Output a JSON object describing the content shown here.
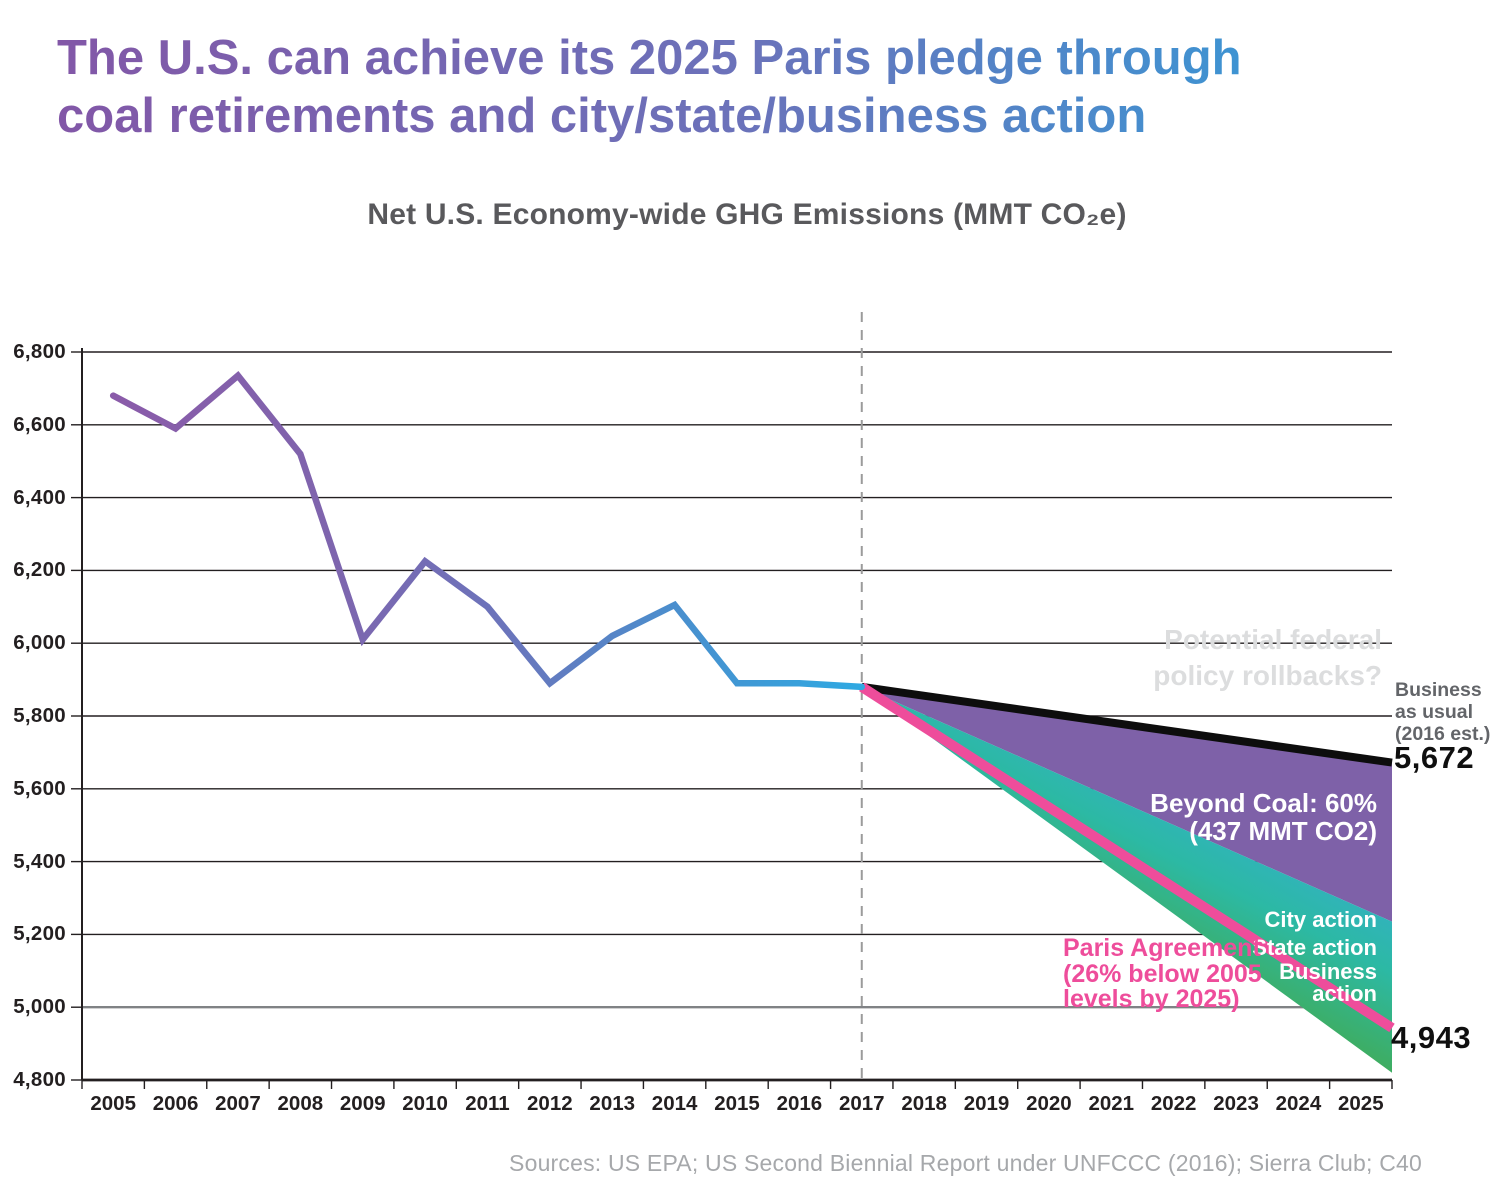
{
  "header": {
    "title_line1": "The U.S. can achieve its 2025 Paris pledge through",
    "title_line2": "coal retirements and city/state/business action",
    "subtitle": "Net U.S. Economy-wide GHG Emissions (MMT CO₂e)"
  },
  "annotations": {
    "rollback_line1": "Potential federal",
    "rollback_line2": "policy rollbacks?",
    "bau_line1": "Business",
    "bau_line2": "as usual",
    "bau_line3": "(2016 est.)",
    "bau_value": "5,672",
    "beyond_coal_line1": "Beyond Coal: 60%",
    "beyond_coal_line2": "(437 MMT CO2)",
    "city_action": "City action",
    "state_action": "State action",
    "business_action_line1": "Business",
    "business_action_line2": "action",
    "paris_line1": "Paris Agreement",
    "paris_line2": "(26% below 2005",
    "paris_line3": "levels by 2025)",
    "paris_value": "4,943"
  },
  "footer": {
    "source": "Sources: US EPA; US Second Biennial Report under UNFCCC (2016); Sierra Club; C40"
  },
  "colors": {
    "title_gradient_start": "#8257a7",
    "title_gradient_end": "#29a3dd",
    "historical_start": "#8a5ba9",
    "historical_end": "#2fa9e2",
    "bau_line": "#0d0d0d",
    "beyond_coal_wedge": "#7e61a8",
    "band_blue": "#4aa4dc",
    "band_teal": "#2cb9a4",
    "band_green": "#41a854",
    "paris_line": "#ee4d9b",
    "gridline": "#231f20",
    "gridline_5000": "#808285",
    "divider": "#9b9b9b"
  },
  "chart_data": {
    "type": "line",
    "title": "Net U.S. Economy-wide GHG Emissions (MMT CO2e)",
    "xlabel": "",
    "ylabel": "",
    "ylim": [
      4800,
      6800
    ],
    "y_tick_step": 200,
    "y_ticks": [
      "6,800",
      "6,600",
      "6,400",
      "6,200",
      "6,000",
      "5,800",
      "5,600",
      "5,400",
      "5,200",
      "5,000",
      "4,800"
    ],
    "x_ticks": [
      "2005",
      "2006",
      "2007",
      "2008",
      "2009",
      "2010",
      "2011",
      "2012",
      "2013",
      "2014",
      "2015",
      "2016",
      "2017",
      "2018",
      "2019",
      "2020",
      "2021",
      "2022",
      "2023",
      "2024",
      "2025"
    ],
    "grid": "horizontal",
    "legend": "labels drawn on chart",
    "divider_year": 2017,
    "historical": {
      "name": "Net U.S. GHG emissions (historical)",
      "years": [
        2005,
        2006,
        2007,
        2008,
        2009,
        2010,
        2011,
        2012,
        2013,
        2014,
        2015,
        2016,
        2017
      ],
      "values": [
        6680,
        6590,
        6735,
        6520,
        6010,
        6225,
        6100,
        5890,
        6020,
        6105,
        5890,
        5890,
        5880
      ]
    },
    "projections": {
      "start_year": 2017,
      "start_value": 5880,
      "end_year": 2025,
      "business_as_usual_end": 5672,
      "beyond_coal_reduction_mmt": 437,
      "beyond_coal_bottom_end": 5235,
      "actions_band_bottom_end": 4820,
      "paris_agreement_end": 4943
    }
  }
}
